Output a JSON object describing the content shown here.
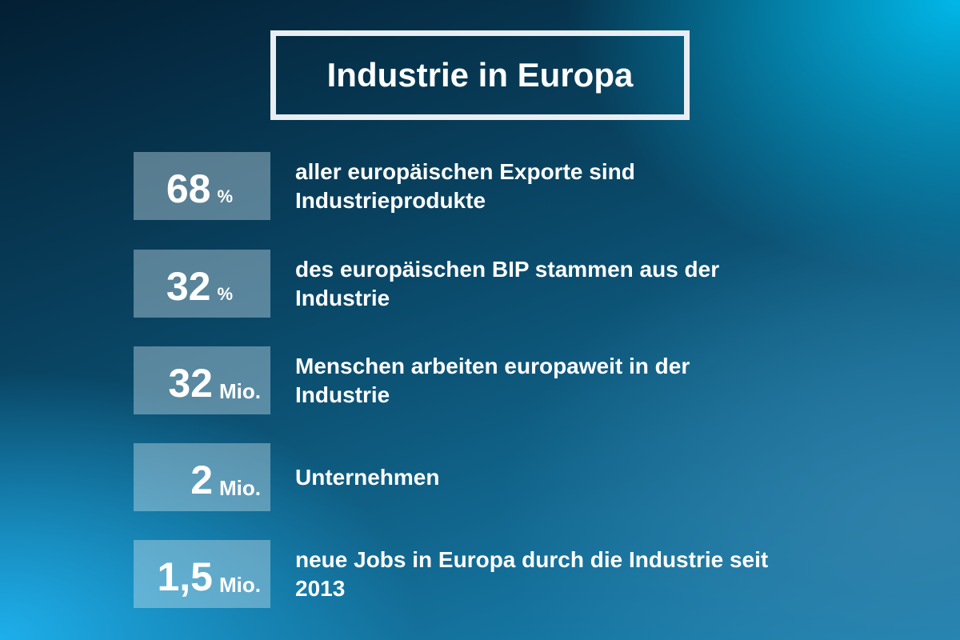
{
  "title": "Industrie in Europa",
  "stats": [
    {
      "value": "68",
      "unit": "%",
      "text": "aller europäischen Exporte sind Industrieprodukte"
    },
    {
      "value": "32",
      "unit": "%",
      "text": "des europäischen BIP stammen aus der Industrie"
    },
    {
      "value": "32",
      "unit": "Mio.",
      "text": "Menschen arbeiten europaweit in der Industrie"
    },
    {
      "value": "2",
      "unit": "Mio.",
      "text": "Unternehmen"
    },
    {
      "value": "1,5",
      "unit": "Mio.",
      "text": "neue Jobs in Europa durch die Industrie seit 2013"
    }
  ]
}
